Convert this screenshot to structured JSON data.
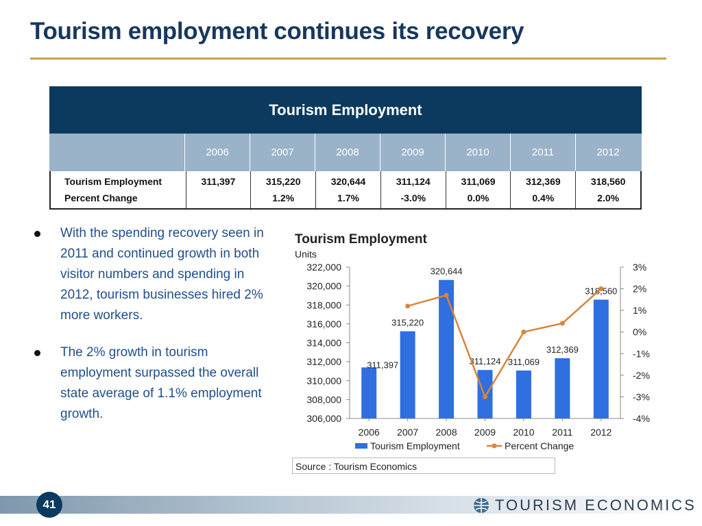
{
  "slide": {
    "title": "Tourism employment continues its recovery",
    "page_number": "41",
    "logo_text": "TOURISM ECONOMICS",
    "source": "Source : Tourism Economics"
  },
  "table": {
    "header": "Tourism Employment",
    "years": [
      "2006",
      "2007",
      "2008",
      "2009",
      "2010",
      "2011",
      "2012"
    ],
    "rows": [
      {
        "label": "Tourism Employment",
        "values": [
          "311,397",
          "315,220",
          "320,644",
          "311,124",
          "311,069",
          "312,369",
          "318,560"
        ]
      },
      {
        "label": "Percent Change",
        "values": [
          "",
          "1.2%",
          "1.7%",
          "-3.0%",
          "0.0%",
          "0.4%",
          "2.0%"
        ]
      }
    ]
  },
  "bullets": [
    "With the spending recovery seen in 2011 and continued growth in both visitor numbers and spending in 2012, tourism businesses hired 2% more workers.",
    "The 2% growth in tourism employment surpassed the overall state average of 1.1% employment growth."
  ],
  "colors": {
    "bar": "#2f6fe0",
    "line": "#d9843a",
    "header": "#0b3a5e",
    "title": "#17375e",
    "accent": "#c8a24a"
  },
  "chart_data": {
    "type": "bar",
    "title": "Tourism Employment",
    "ylabel": "Units",
    "categories": [
      "2006",
      "2007",
      "2008",
      "2009",
      "2010",
      "2011",
      "2012"
    ],
    "series": [
      {
        "name": "Tourism Employment",
        "type": "bar",
        "axis": "left",
        "values": [
          311397,
          315220,
          320644,
          311124,
          311069,
          312369,
          318560
        ],
        "labels": [
          "311,397",
          "315,220",
          "320,644",
          "311,124",
          "311,069",
          "312,369",
          "318,560"
        ]
      },
      {
        "name": "Percent Change",
        "type": "line",
        "axis": "right",
        "values": [
          null,
          1.2,
          1.7,
          -3.0,
          0.0,
          0.4,
          2.0
        ]
      }
    ],
    "ylim": [
      306000,
      322000
    ],
    "yticks": [
      306000,
      308000,
      310000,
      312000,
      314000,
      316000,
      318000,
      320000,
      322000
    ],
    "ytick_labels": [
      "306,000",
      "308,000",
      "310,000",
      "312,000",
      "314,000",
      "316,000",
      "318,000",
      "320,000",
      "322,000"
    ],
    "y2lim": [
      -4,
      3
    ],
    "y2ticks": [
      -4,
      -3,
      -2,
      -1,
      0,
      1,
      2,
      3
    ],
    "y2tick_labels": [
      "-4%",
      "-3%",
      "-2%",
      "-1%",
      "0%",
      "1%",
      "2%",
      "3%"
    ],
    "legend_position": "bottom",
    "grid": false
  }
}
